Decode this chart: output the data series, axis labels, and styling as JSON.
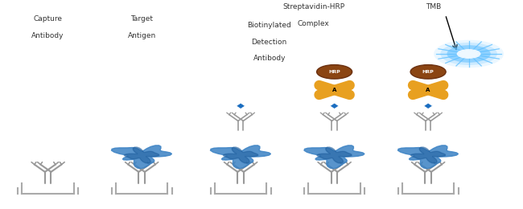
{
  "bg_color": "#ffffff",
  "text_color": "#333333",
  "labels": [
    [
      "Capture",
      "Antibody"
    ],
    [
      "Target",
      "Antigen"
    ],
    [
      "Biotinylated",
      "Detection",
      "Antibody"
    ],
    [
      "Streptavidin-HRP",
      "Complex"
    ],
    [
      "TMB"
    ]
  ],
  "colors": {
    "antibody_gray": "#999999",
    "antigen_blue": "#3B82C4",
    "antigen_dark": "#1A5A9A",
    "biotin_blue": "#1A6DC0",
    "streptavidin_orange": "#E8A020",
    "hrp_brown": "#8B4513",
    "hrp_dark": "#6B3010",
    "tmb_blue": "#3090FF",
    "tmb_light": "#60C0FF",
    "well_gray": "#AAAAAA"
  }
}
